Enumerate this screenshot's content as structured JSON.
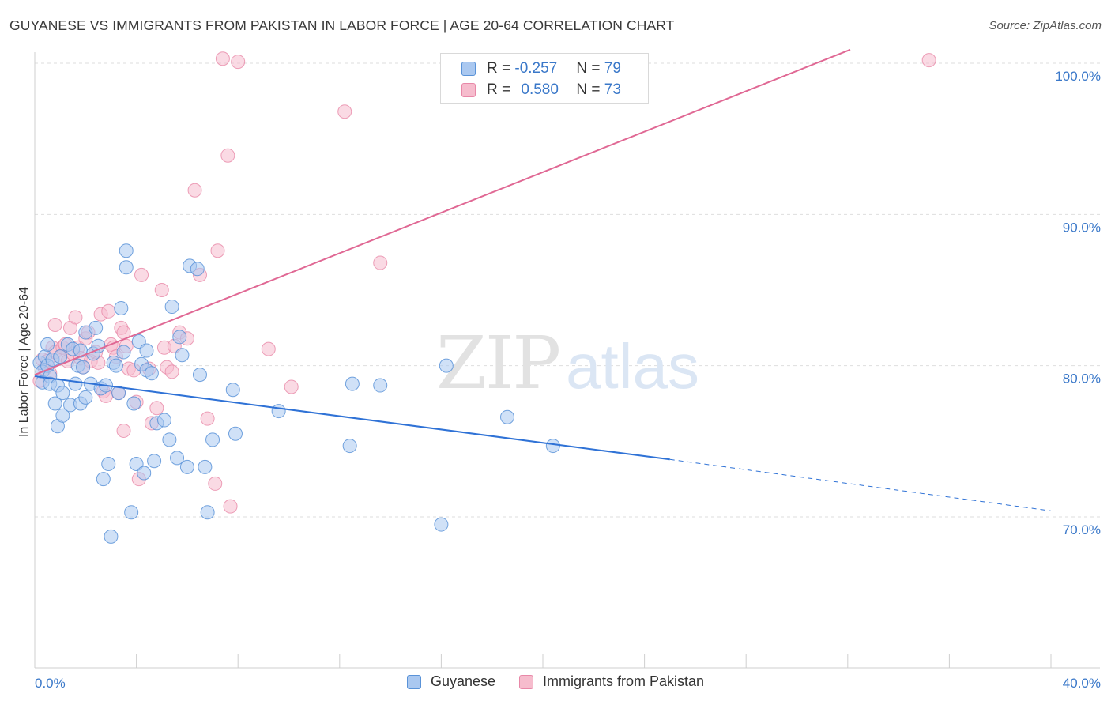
{
  "title": "GUYANESE VS IMMIGRANTS FROM PAKISTAN IN LABOR FORCE | AGE 20-64 CORRELATION CHART",
  "source": "Source: ZipAtlas.com",
  "watermark": {
    "zip": "ZIP",
    "atlas": "atlas"
  },
  "legend": {
    "rows": [
      {
        "r_label": "R = ",
        "r_value": "-0.257",
        "n_label": "N = ",
        "n_value": "79"
      },
      {
        "r_label": "R = ",
        "r_value": "0.580",
        "n_label": "N = ",
        "n_value": "73"
      }
    ]
  },
  "bottom_legend": [
    "Guyanese",
    "Immigrants from Pakistan"
  ],
  "colors": {
    "blue_fill": "#aac8f0",
    "blue_stroke": "#5a93d8",
    "blue_line": "#2f72d6",
    "pink_fill": "#f6bccd",
    "pink_stroke": "#e888a8",
    "pink_line": "#e06894",
    "grid": "#dedede",
    "axis_text": "#3a78c9"
  },
  "chart_data": {
    "type": "scatter",
    "title": "GUYANESE VS IMMIGRANTS FROM PAKISTAN IN LABOR FORCE | AGE 20-64 CORRELATION CHART",
    "xlabel": "",
    "ylabel": "In Labor Force | Age 20-64",
    "xlim": [
      0,
      40
    ],
    "ylim": [
      60.5,
      100.5
    ],
    "x_tick_labels": [
      "0.0%",
      "40.0%"
    ],
    "y_ticks": [
      70,
      80,
      90,
      100
    ],
    "y_tick_labels": [
      "70.0%",
      "80.0%",
      "90.0%",
      "100.0%"
    ],
    "grid": true,
    "legend_position": "top-center",
    "series": [
      {
        "name": "Guyanese",
        "R": -0.257,
        "N": 79,
        "trend": {
          "x0": 0,
          "y0": 79.3,
          "x1": 25.0,
          "y1": 73.8,
          "dashed_to_x": 40,
          "dashed_to_y": 70.4
        },
        "points": [
          [
            0.2,
            80.2
          ],
          [
            0.3,
            79.6
          ],
          [
            0.3,
            78.9
          ],
          [
            0.4,
            80.6
          ],
          [
            0.5,
            80.0
          ],
          [
            0.5,
            81.4
          ],
          [
            0.6,
            79.3
          ],
          [
            0.6,
            78.8
          ],
          [
            0.7,
            80.4
          ],
          [
            0.8,
            77.5
          ],
          [
            0.9,
            78.7
          ],
          [
            0.9,
            76.0
          ],
          [
            1.0,
            80.6
          ],
          [
            1.1,
            76.7
          ],
          [
            1.1,
            78.2
          ],
          [
            1.3,
            81.4
          ],
          [
            1.4,
            77.4
          ],
          [
            1.5,
            81.1
          ],
          [
            1.6,
            78.8
          ],
          [
            1.7,
            80.0
          ],
          [
            1.8,
            77.5
          ],
          [
            1.8,
            81.0
          ],
          [
            1.9,
            79.9
          ],
          [
            2.0,
            82.2
          ],
          [
            2.0,
            77.9
          ],
          [
            2.2,
            78.8
          ],
          [
            2.3,
            80.8
          ],
          [
            2.4,
            82.5
          ],
          [
            2.5,
            81.3
          ],
          [
            2.6,
            78.5
          ],
          [
            2.7,
            72.5
          ],
          [
            2.8,
            78.7
          ],
          [
            2.9,
            73.5
          ],
          [
            3.0,
            68.7
          ],
          [
            3.1,
            80.2
          ],
          [
            3.2,
            80.0
          ],
          [
            3.3,
            78.2
          ],
          [
            3.4,
            83.8
          ],
          [
            3.5,
            80.9
          ],
          [
            3.6,
            87.6
          ],
          [
            3.6,
            86.5
          ],
          [
            3.8,
            70.3
          ],
          [
            3.9,
            77.5
          ],
          [
            4.0,
            73.5
          ],
          [
            4.1,
            81.6
          ],
          [
            4.2,
            80.1
          ],
          [
            4.3,
            72.9
          ],
          [
            4.4,
            79.7
          ],
          [
            4.4,
            81.0
          ],
          [
            4.6,
            79.5
          ],
          [
            4.7,
            73.7
          ],
          [
            4.8,
            76.2
          ],
          [
            5.1,
            76.4
          ],
          [
            5.3,
            75.1
          ],
          [
            5.4,
            83.9
          ],
          [
            5.6,
            73.9
          ],
          [
            5.7,
            81.9
          ],
          [
            5.8,
            80.7
          ],
          [
            6.0,
            73.3
          ],
          [
            6.1,
            86.6
          ],
          [
            6.4,
            86.4
          ],
          [
            6.5,
            79.4
          ],
          [
            6.7,
            73.3
          ],
          [
            6.8,
            70.3
          ],
          [
            7.0,
            75.1
          ],
          [
            7.8,
            78.4
          ],
          [
            7.9,
            75.5
          ],
          [
            9.6,
            77.0
          ],
          [
            12.4,
            74.7
          ],
          [
            12.5,
            78.8
          ],
          [
            13.6,
            78.7
          ],
          [
            16.0,
            69.5
          ],
          [
            16.2,
            80.0
          ],
          [
            18.6,
            76.6
          ],
          [
            20.4,
            74.7
          ]
        ]
      },
      {
        "name": "Immigrants from Pakistan",
        "R": 0.58,
        "N": 73,
        "trend": {
          "x0": 0,
          "y0": 79.4,
          "x1": 32.1,
          "y1": 100.9
        },
        "points": [
          [
            0.2,
            79.0
          ],
          [
            0.3,
            80.4
          ],
          [
            0.4,
            79.8
          ],
          [
            0.5,
            80.3
          ],
          [
            0.6,
            79.5
          ],
          [
            0.7,
            81.2
          ],
          [
            0.8,
            80.9
          ],
          [
            0.8,
            82.7
          ],
          [
            1.0,
            80.6
          ],
          [
            1.1,
            81.2
          ],
          [
            1.2,
            81.4
          ],
          [
            1.3,
            80.3
          ],
          [
            1.4,
            82.5
          ],
          [
            1.5,
            80.8
          ],
          [
            1.6,
            83.2
          ],
          [
            1.7,
            81.2
          ],
          [
            1.8,
            80.5
          ],
          [
            1.9,
            79.9
          ],
          [
            2.0,
            81.8
          ],
          [
            2.1,
            82.2
          ],
          [
            2.2,
            80.3
          ],
          [
            2.4,
            80.9
          ],
          [
            2.5,
            80.2
          ],
          [
            2.6,
            83.4
          ],
          [
            2.7,
            78.3
          ],
          [
            2.8,
            78.0
          ],
          [
            2.9,
            83.6
          ],
          [
            3.0,
            81.4
          ],
          [
            3.1,
            81.2
          ],
          [
            3.2,
            80.6
          ],
          [
            3.3,
            78.2
          ],
          [
            3.4,
            82.5
          ],
          [
            3.5,
            82.2
          ],
          [
            3.5,
            75.7
          ],
          [
            3.6,
            81.3
          ],
          [
            3.7,
            79.8
          ],
          [
            3.9,
            79.7
          ],
          [
            4.0,
            77.6
          ],
          [
            4.1,
            72.5
          ],
          [
            4.2,
            86.0
          ],
          [
            4.5,
            79.8
          ],
          [
            4.6,
            76.2
          ],
          [
            4.8,
            77.2
          ],
          [
            5.0,
            85.0
          ],
          [
            5.1,
            81.2
          ],
          [
            5.2,
            79.9
          ],
          [
            5.4,
            79.6
          ],
          [
            5.5,
            81.3
          ],
          [
            5.7,
            82.2
          ],
          [
            6.0,
            81.8
          ],
          [
            6.3,
            91.6
          ],
          [
            6.5,
            86.0
          ],
          [
            6.8,
            76.5
          ],
          [
            7.1,
            72.2
          ],
          [
            7.2,
            87.6
          ],
          [
            7.4,
            100.3
          ],
          [
            7.6,
            93.9
          ],
          [
            7.7,
            70.7
          ],
          [
            8.0,
            100.1
          ],
          [
            9.2,
            81.1
          ],
          [
            10.1,
            78.6
          ],
          [
            12.2,
            96.8
          ],
          [
            13.6,
            86.8
          ],
          [
            16.3,
            100.2
          ],
          [
            35.2,
            100.2
          ]
        ]
      }
    ]
  }
}
